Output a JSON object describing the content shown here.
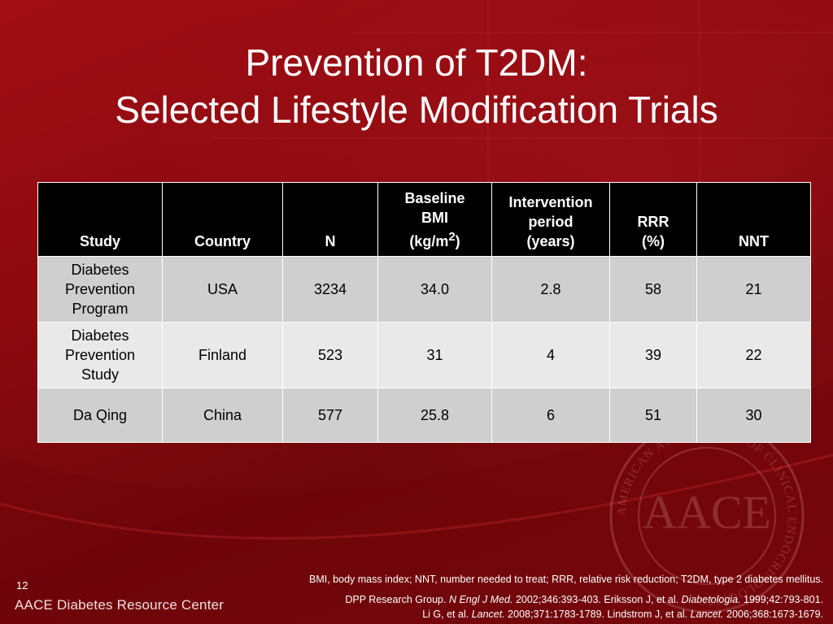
{
  "slide": {
    "title_line1": "Prevention of T2DM:",
    "title_line2": "Selected Lifestyle Modification Trials",
    "page_number": "12",
    "brand": "AACE Diabetes Resource Center",
    "emblem_text": "AACE",
    "emblem_ring_text": "AMERICAN ASSOCIATION OF CLINICAL ENDOCRINOLOGISTS"
  },
  "table": {
    "headers": {
      "study": "Study",
      "country": "Country",
      "n": "N",
      "bmi_line1": "Baseline",
      "bmi_line2": "BMI",
      "bmi_line3_pre": "(kg/m",
      "bmi_sup": "2",
      "bmi_line3_post": ")",
      "period_line1": "Intervention",
      "period_line2": "period",
      "period_line3": "(years)",
      "rrr_line1": "RRR",
      "rrr_line2": "(%)",
      "nnt": "NNT"
    },
    "rows": [
      {
        "study_line1": "Diabetes",
        "study_line2": "Prevention",
        "study_line3": "Program",
        "country": "USA",
        "n": "3234",
        "bmi": "34.0",
        "period": "2.8",
        "rrr": "58",
        "nnt": "21"
      },
      {
        "study_line1": "Diabetes",
        "study_line2": "Prevention",
        "study_line3": "Study",
        "country": "Finland",
        "n": "523",
        "bmi": "31",
        "period": "4",
        "rrr": "39",
        "nnt": "22"
      },
      {
        "study_line1": "Da Qing",
        "country": "China",
        "n": "577",
        "bmi": "25.8",
        "period": "6",
        "rrr": "51",
        "nnt": "30"
      }
    ]
  },
  "footnotes": {
    "abbreviations": "BMI, body mass index; NNT, number needed to treat; RRR, relative risk reduction; T2DM, type 2 diabetes mellitus.",
    "ref1_pre": "DPP Research Group. ",
    "ref1_journal": "N Engl J Med.",
    "ref1_post": " 2002;346:393-403. Eriksson J, et al. ",
    "ref2_journal": "Diabetologia.",
    "ref2_post": " 1999;42:793-801.",
    "ref3_pre": "Li G, et al. ",
    "ref3_journal": "Lancet.",
    "ref3_post": " 2008;371:1783-1789. Lindstrom J, et al. ",
    "ref4_journal": "Lancet.",
    "ref4_post": " 2006;368:1673-1679."
  }
}
